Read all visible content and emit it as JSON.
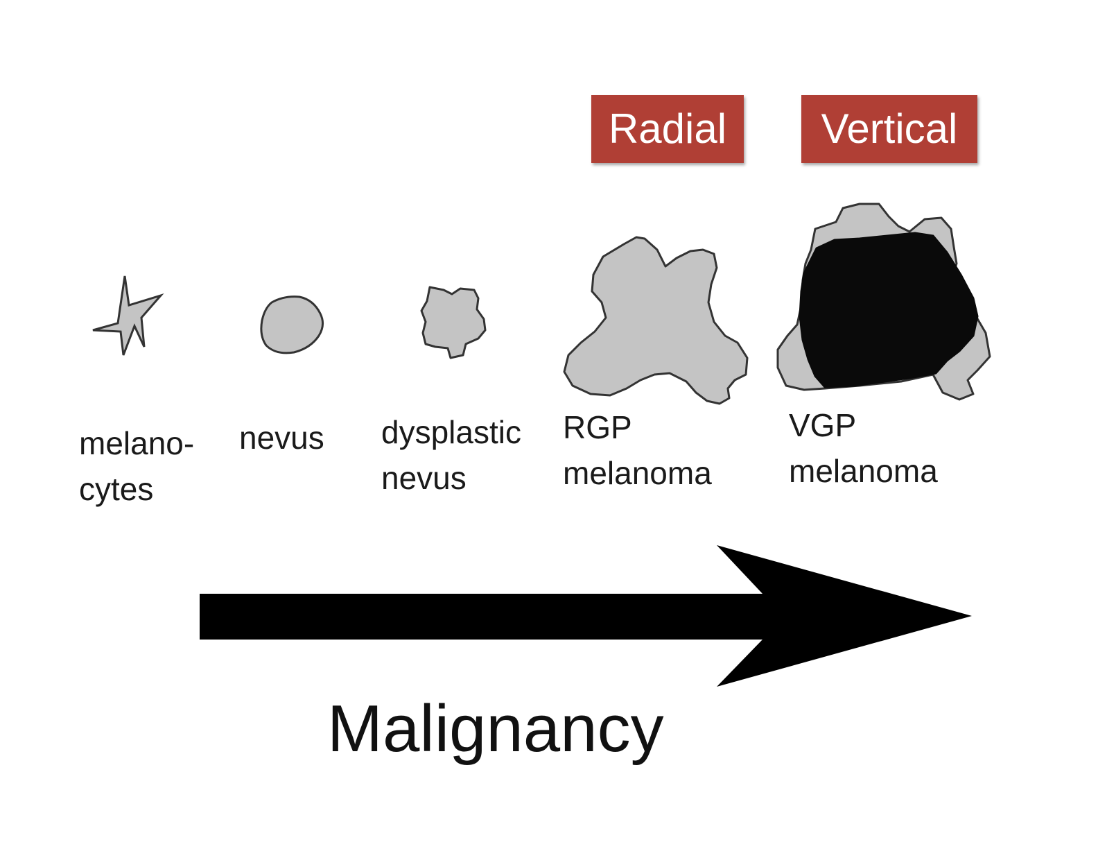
{
  "badges": {
    "radial": "Radial",
    "vertical": "Vertical"
  },
  "stages": [
    {
      "line1": "melano-",
      "line2": "cytes"
    },
    {
      "line1": "nevus",
      "line2": ""
    },
    {
      "line1": "dysplastic",
      "line2": "nevus"
    },
    {
      "line1": "RGP",
      "line2": "melanoma"
    },
    {
      "line1": "VGP",
      "line2": "melanoma"
    }
  ],
  "arrow_label": "Malignancy",
  "colors": {
    "badge": "#b03f35",
    "cell_fill": "#c4c4c4",
    "cell_outline": "#333333",
    "vgp_core": "#0a0a0a",
    "arrow": "#000000"
  }
}
